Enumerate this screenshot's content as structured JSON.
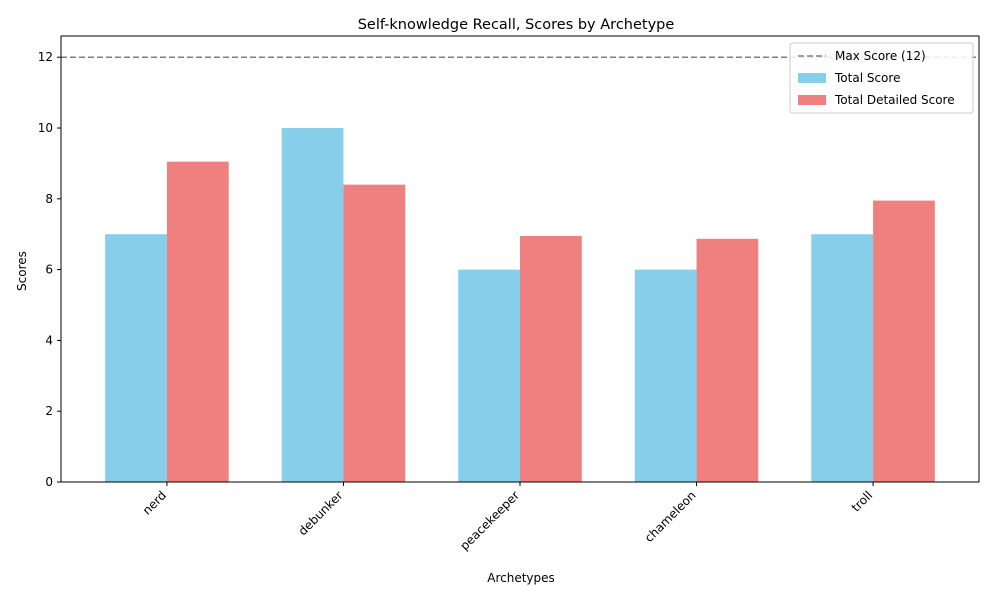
{
  "chart_data": {
    "type": "bar",
    "title": "Self-knowledge Recall, Scores by Archetype",
    "xlabel": "Archetypes",
    "ylabel": "Scores",
    "categories": [
      "nerd",
      "debunker",
      "peacekeeper",
      "chameleon",
      "troll"
    ],
    "series": [
      {
        "name": "Total Score",
        "values": [
          7,
          10,
          6,
          6,
          7
        ],
        "color": "#87CEEB"
      },
      {
        "name": "Total Detailed Score",
        "values": [
          9.05,
          8.4,
          6.95,
          6.87,
          7.95
        ],
        "color": "#F08080"
      }
    ],
    "reference_line": {
      "name": "Max Score (12)",
      "value": 12,
      "color": "#808080",
      "style": "dashed"
    },
    "ylim": [
      0,
      12.6
    ],
    "yticks": [
      0,
      2,
      4,
      6,
      8,
      10,
      12
    ],
    "xtick_rotation": 45,
    "grid": false,
    "legend_position": "top-right"
  }
}
